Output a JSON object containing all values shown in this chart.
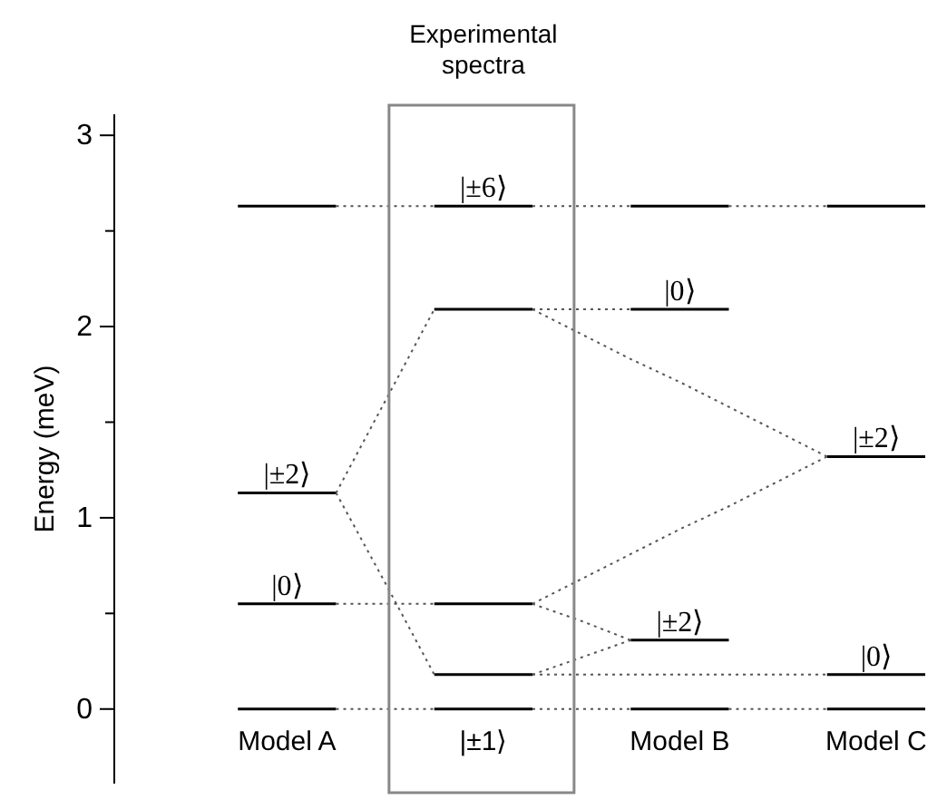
{
  "chart_data": {
    "type": "line",
    "ylabel": "Energy (meV)",
    "categories": [
      null,
      null,
      null,
      "Model A",
      null,
      null,
      null,
      "|±1⟩",
      null,
      null,
      null,
      "Model B",
      null,
      null,
      null,
      "Model C",
      null
    ],
    "ylim": [
      -0.39,
      3.11
    ],
    "yticks": [
      0,
      {
        "value": 0.5,
        "label": null
      },
      1,
      {
        "value": 1.5,
        "label": null
      },
      2,
      {
        "value": 2.5,
        "label": null
      },
      3
    ],
    "grid": false,
    "series": [
      {
        "color": "#000000",
        "values": [
          null,
          null,
          0,
          0,
          0,
          null,
          0,
          0,
          0,
          null,
          0,
          0,
          0,
          null,
          0,
          0,
          0
        ]
      },
      {
        "color": "#000000",
        "values": [
          null,
          null,
          2.63,
          2.63,
          2.63,
          null,
          2.63,
          2.63,
          2.63,
          null,
          2.63,
          2.63,
          2.63,
          null,
          2.63,
          2.63,
          2.63
        ]
      },
      {
        "color": "#000000",
        "values": [
          null,
          null,
          0.55,
          0.55,
          0.55,
          null,
          null,
          null,
          null,
          null,
          null,
          null,
          null,
          null,
          null,
          null,
          null
        ]
      },
      {
        "color": "#000000",
        "values": [
          null,
          null,
          1.13,
          1.13,
          1.13,
          null,
          null,
          null,
          null,
          null,
          null,
          null,
          null,
          null,
          null,
          null,
          null
        ]
      },
      {
        "color": "#000000",
        "values": [
          null,
          null,
          null,
          null,
          null,
          null,
          0.18,
          0.18,
          0.18,
          null,
          null,
          null,
          null,
          null,
          null,
          null,
          null
        ]
      },
      {
        "color": "#000000",
        "values": [
          null,
          null,
          null,
          null,
          null,
          null,
          0.55,
          0.55,
          0.55,
          null,
          null,
          null,
          null,
          null,
          null,
          null,
          null
        ]
      },
      {
        "color": "#000000",
        "values": [
          null,
          null,
          null,
          null,
          null,
          null,
          2.09,
          2.09,
          2.09,
          null,
          null,
          null,
          null,
          null,
          null,
          null,
          null
        ]
      },
      {
        "color": "#000000",
        "values": [
          null,
          null,
          null,
          null,
          null,
          null,
          null,
          null,
          null,
          null,
          0.36,
          0.36,
          0.36,
          null,
          null,
          null,
          null
        ]
      },
      {
        "color": "#000000",
        "values": [
          null,
          null,
          null,
          null,
          null,
          null,
          null,
          null,
          null,
          null,
          2.09,
          2.09,
          2.09,
          null,
          null,
          null,
          null
        ]
      },
      {
        "color": "#000000",
        "values": [
          null,
          null,
          null,
          null,
          null,
          null,
          null,
          null,
          null,
          null,
          null,
          null,
          null,
          null,
          0.18,
          0.18,
          0.18
        ]
      },
      {
        "color": "#000000",
        "values": [
          null,
          null,
          null,
          null,
          null,
          null,
          null,
          null,
          null,
          null,
          null,
          null,
          null,
          null,
          1.32,
          1.32,
          1.32
        ]
      },
      {
        "color": "#555555",
        "line_style": "dotted",
        "values": [
          null,
          null,
          null,
          null,
          0,
          0,
          0,
          null,
          0,
          0,
          0,
          null,
          0,
          0,
          0,
          null,
          null
        ]
      },
      {
        "color": "#555555",
        "line_style": "dotted",
        "values": [
          null,
          null,
          null,
          null,
          2.63,
          2.63,
          2.63,
          null,
          2.63,
          2.63,
          2.63,
          null,
          2.63,
          2.63,
          2.63,
          null,
          null
        ]
      },
      {
        "color": "#555555",
        "line_style": "dotted",
        "values": [
          null,
          null,
          null,
          null,
          0.55,
          0.55,
          0.55,
          null,
          null,
          null,
          null,
          null,
          null,
          null,
          null,
          null,
          null
        ]
      },
      {
        "color": "#555555",
        "line_style": "dotted",
        "values": [
          null,
          null,
          null,
          null,
          1.13,
          1.61,
          2.09,
          null,
          null,
          null,
          null,
          null,
          null,
          null,
          null,
          null,
          null
        ]
      },
      {
        "color": "#555555",
        "line_style": "dotted",
        "values": [
          null,
          null,
          null,
          null,
          1.13,
          0.66,
          0.18,
          null,
          null,
          null,
          null,
          null,
          null,
          null,
          null,
          null,
          null
        ]
      },
      {
        "color": "#555555",
        "line_style": "dotted",
        "values": [
          null,
          null,
          null,
          null,
          null,
          null,
          null,
          null,
          2.09,
          2.09,
          2.09,
          null,
          null,
          null,
          null,
          null,
          null
        ]
      },
      {
        "color": "#555555",
        "line_style": "dotted",
        "values": [
          null,
          null,
          null,
          null,
          null,
          null,
          null,
          null,
          2.09,
          1.96,
          1.83,
          1.71,
          1.58,
          1.45,
          1.32,
          null,
          null
        ]
      },
      {
        "color": "#555555",
        "line_style": "dotted",
        "values": [
          null,
          null,
          null,
          null,
          null,
          null,
          null,
          null,
          0.55,
          0.68,
          0.81,
          0.94,
          1.06,
          1.19,
          1.32,
          null,
          null
        ]
      },
      {
        "color": "#555555",
        "line_style": "dotted",
        "values": [
          null,
          null,
          null,
          null,
          null,
          null,
          null,
          null,
          0.55,
          0.46,
          0.36,
          null,
          null,
          null,
          null,
          null,
          null
        ]
      },
      {
        "color": "#555555",
        "line_style": "dotted",
        "values": [
          null,
          null,
          null,
          null,
          null,
          null,
          null,
          null,
          0.18,
          0.27,
          0.36,
          null,
          null,
          null,
          null,
          null,
          null
        ]
      },
      {
        "color": "#555555",
        "line_style": "dotted",
        "values": [
          null,
          null,
          null,
          null,
          null,
          null,
          null,
          null,
          0.18,
          0.18,
          0.18,
          0.18,
          0.18,
          0.18,
          0.18,
          null,
          null
        ]
      }
    ],
    "annotations": [
      "Experimental spectra",
      {
        "text": "|±2⟩",
        "x": "Model A",
        "y": 1.13
      },
      {
        "text": "|0⟩",
        "x": "Model A",
        "y": 0.55
      },
      {
        "text": "|±6⟩",
        "y": 2.63
      },
      {
        "text": "|0⟩",
        "x": "Model B",
        "y": 2.09
      },
      {
        "text": "|±2⟩",
        "x": "Model B",
        "y": 0.36
      },
      {
        "text": "|±2⟩",
        "x": "Model C",
        "y": 1.32
      },
      {
        "text": "|0⟩",
        "x": "Model C",
        "y": 0.18
      }
    ]
  }
}
